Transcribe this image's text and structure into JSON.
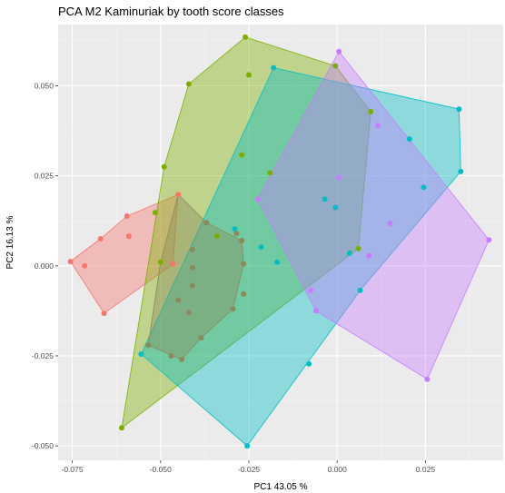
{
  "chart_data": {
    "type": "scatter",
    "title": "PCA M2 Kaminuriak by tooth score classes",
    "xlabel": "PC1 43.05 %",
    "ylabel": "PC2 16.13 %",
    "xlim": [
      -0.079,
      0.047
    ],
    "ylim": [
      -0.054,
      0.067
    ],
    "x_ticks": [
      -0.075,
      -0.05,
      -0.025,
      0.0,
      0.025,
      0.05
    ],
    "x_tick_labels": [
      "-0.075",
      "-0.050",
      "-0.025",
      "0.000",
      "0.025",
      "0.05"
    ],
    "y_ticks": [
      -0.05,
      -0.025,
      0.0,
      0.025,
      0.05
    ],
    "y_tick_labels": [
      "-0.050",
      "-0.025",
      "0.000",
      "0.025",
      "0.050"
    ],
    "grid": true,
    "legend": "none",
    "series": [
      {
        "color": "#F8766D",
        "points": [
          [
            -0.0755,
            0.0012
          ],
          [
            -0.0715,
            0.0
          ],
          [
            -0.067,
            0.0075
          ],
          [
            -0.066,
            -0.0132
          ],
          [
            -0.0595,
            0.0138
          ],
          [
            -0.059,
            0.0082
          ],
          [
            -0.045,
            0.0198
          ],
          [
            -0.0465,
            0.0005
          ]
        ],
        "hull": [
          [
            -0.0755,
            0.0012
          ],
          [
            -0.067,
            0.0075
          ],
          [
            -0.0595,
            0.0138
          ],
          [
            -0.045,
            0.0198
          ],
          [
            -0.0465,
            0.0005
          ],
          [
            -0.066,
            -0.0132
          ]
        ]
      },
      {
        "color": "#7CAE00",
        "points": [
          [
            -0.026,
            0.0635
          ],
          [
            -0.025,
            0.053
          ],
          [
            -0.0005,
            0.0555
          ],
          [
            -0.042,
            0.0505
          ],
          [
            -0.049,
            0.0275
          ],
          [
            -0.0515,
            0.0148
          ],
          [
            -0.05,
            0.001
          ],
          [
            -0.034,
            0.0082
          ],
          [
            -0.027,
            0.0308
          ],
          [
            -0.019,
            0.0258
          ],
          [
            -0.061,
            -0.045
          ],
          [
            0.0095,
            0.0428
          ],
          [
            0.006,
            0.0048
          ]
        ],
        "hull": [
          [
            -0.026,
            0.0635
          ],
          [
            -0.0005,
            0.0555
          ],
          [
            0.0095,
            0.0428
          ],
          [
            0.006,
            0.0048
          ],
          [
            -0.061,
            -0.045
          ],
          [
            -0.049,
            0.0275
          ],
          [
            -0.042,
            0.0505
          ]
        ]
      },
      {
        "color": "#00BFC4",
        "points": [
          [
            -0.018,
            0.055
          ],
          [
            0.0345,
            0.0435
          ],
          [
            0.035,
            0.0262
          ],
          [
            0.0205,
            0.0352
          ],
          [
            0.0245,
            0.0218
          ],
          [
            -0.0035,
            0.0185
          ],
          [
            -0.0005,
            0.0162
          ],
          [
            0.0035,
            0.0035
          ],
          [
            -0.029,
            0.0102
          ],
          [
            -0.0215,
            0.0052
          ],
          [
            -0.017,
            0.001
          ],
          [
            -0.0555,
            -0.0245
          ],
          [
            -0.0255,
            -0.05
          ],
          [
            -0.008,
            -0.0272
          ],
          [
            0.0065,
            -0.0068
          ]
        ],
        "hull": [
          [
            -0.018,
            0.055
          ],
          [
            0.0345,
            0.0435
          ],
          [
            0.035,
            0.0262
          ],
          [
            0.0065,
            -0.0068
          ],
          [
            -0.0255,
            -0.05
          ],
          [
            -0.0555,
            -0.0245
          ]
        ]
      },
      {
        "color": "#C77CFF",
        "points": [
          [
            0.0005,
            0.0595
          ],
          [
            0.0115,
            0.039
          ],
          [
            0.0005,
            0.0245
          ],
          [
            -0.0225,
            0.0185
          ],
          [
            0.015,
            0.0118
          ],
          [
            0.009,
            0.0028
          ],
          [
            0.043,
            0.0072
          ],
          [
            -0.0075,
            -0.0068
          ],
          [
            -0.006,
            -0.0125
          ],
          [
            0.0255,
            -0.0315
          ]
        ],
        "hull": [
          [
            0.0005,
            0.0595
          ],
          [
            0.043,
            0.0072
          ],
          [
            0.0255,
            -0.0315
          ],
          [
            -0.006,
            -0.0125
          ],
          [
            -0.0225,
            0.0185
          ]
        ]
      },
      {
        "color": "#8A8A5A",
        "points": [
          [
            -0.037,
            0.012
          ],
          [
            -0.0285,
            0.009
          ],
          [
            -0.027,
            0.007
          ],
          [
            -0.041,
            0.0045
          ],
          [
            -0.041,
            -0.0005
          ],
          [
            -0.041,
            -0.0055
          ],
          [
            -0.0265,
            0.0005
          ],
          [
            -0.0265,
            -0.0078
          ],
          [
            -0.0295,
            -0.012
          ],
          [
            -0.045,
            -0.0095
          ],
          [
            -0.042,
            -0.013
          ],
          [
            -0.0385,
            -0.02
          ],
          [
            -0.0535,
            -0.022
          ],
          [
            -0.047,
            -0.025
          ],
          [
            -0.044,
            -0.026
          ]
        ],
        "hull": [
          [
            -0.045,
            0.0198
          ],
          [
            -0.037,
            0.012
          ],
          [
            -0.027,
            0.007
          ],
          [
            -0.0265,
            0.0005
          ],
          [
            -0.0295,
            -0.012
          ],
          [
            -0.0385,
            -0.02
          ],
          [
            -0.044,
            -0.026
          ],
          [
            -0.0535,
            -0.022
          ],
          [
            -0.05,
            0.001
          ]
        ]
      }
    ]
  }
}
